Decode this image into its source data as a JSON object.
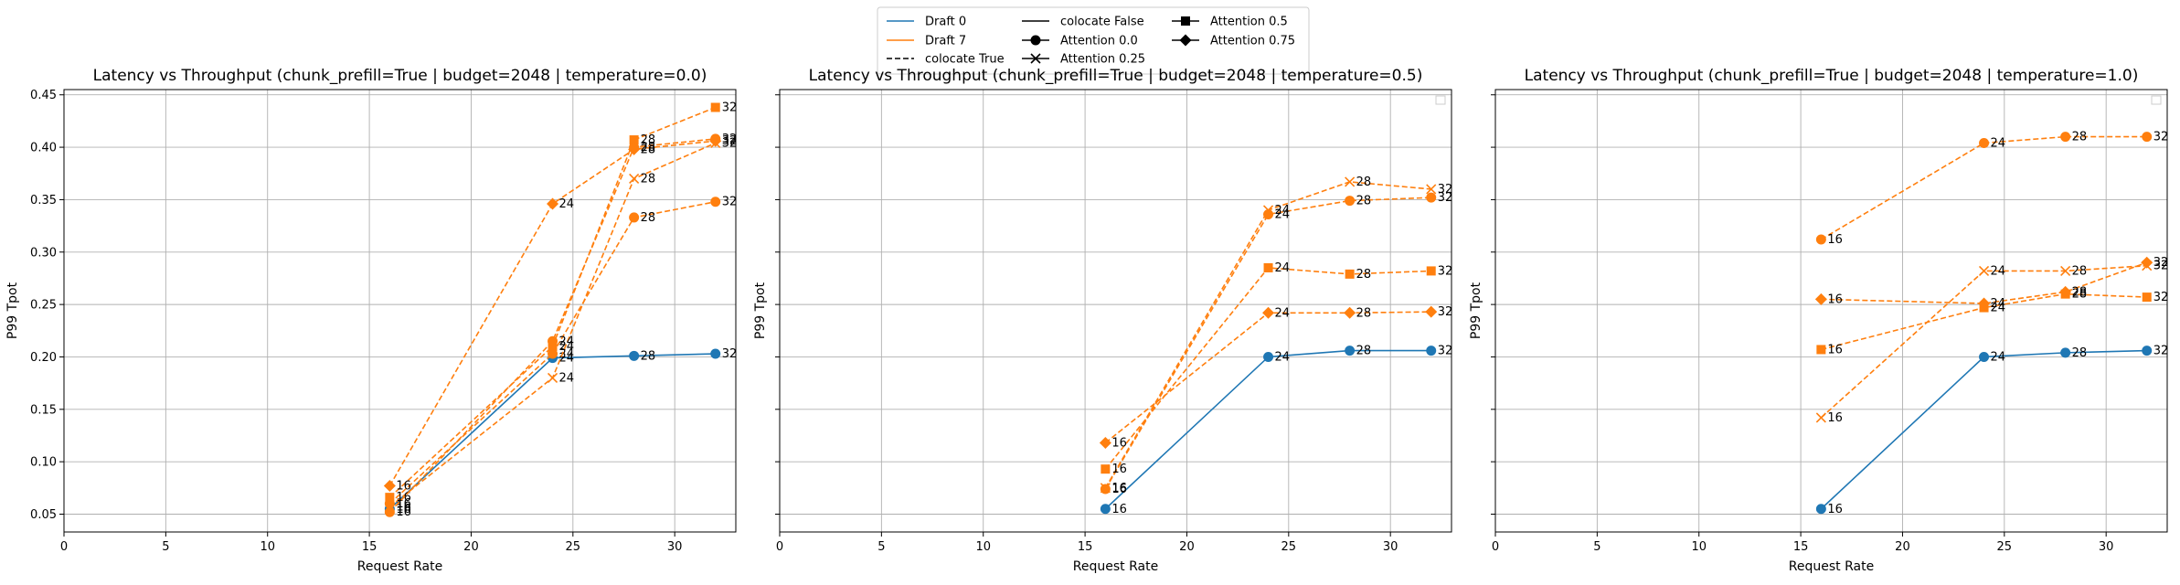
{
  "legend": {
    "placement": "top-center",
    "entries": [
      {
        "label": "Draft 0",
        "kind": "color",
        "color": "#1f77b4"
      },
      {
        "label": "Draft 7",
        "kind": "color",
        "color": "#ff7f0e"
      },
      {
        "label": "colocate True",
        "kind": "dash"
      },
      {
        "label": "colocate False",
        "kind": "solid"
      },
      {
        "label": "Attention 0.0",
        "kind": "marker",
        "marker": "circle"
      },
      {
        "label": "Attention 0.25",
        "kind": "marker",
        "marker": "x"
      },
      {
        "label": "Attention 0.5",
        "kind": "marker",
        "marker": "square"
      },
      {
        "label": "Attention 0.75",
        "kind": "marker",
        "marker": "diamond"
      }
    ]
  },
  "colors": {
    "draft0": "#1f77b4",
    "draft7": "#ff7f0e",
    "grid": "#b0b0b0"
  },
  "chart_data": [
    {
      "type": "line",
      "title": "Latency vs Throughput (chunk_prefill=True | budget=2048 | temperature=0.0)",
      "xlabel": "Request Rate",
      "ylabel": "P99 Tpot",
      "xlim": [
        0,
        33
      ],
      "ylim": [
        0.033,
        0.455
      ],
      "xticks": [
        0,
        5,
        10,
        15,
        20,
        25,
        30
      ],
      "yticks": [
        0.05,
        0.1,
        0.15,
        0.2,
        0.25,
        0.3,
        0.35,
        0.4,
        0.45
      ],
      "ytick_labels": [
        "0.05",
        "0.10",
        "0.15",
        "0.20",
        "0.25",
        "0.30",
        "0.35",
        "0.40",
        "0.45"
      ],
      "grid": true,
      "empty_legend_box": false,
      "series": [
        {
          "color": "#1f77b4",
          "dashed": false,
          "marker": "circle",
          "x": [
            16,
            24,
            28,
            32
          ],
          "y": [
            0.055,
            0.199,
            0.201,
            0.203
          ],
          "labels": [
            "16",
            "24",
            "28",
            "32"
          ]
        },
        {
          "color": "#ff7f0e",
          "dashed": true,
          "marker": "circle",
          "x": [
            16,
            24,
            28,
            32
          ],
          "y": [
            0.06,
            0.203,
            0.333,
            0.348
          ],
          "labels": [
            "16",
            "24",
            "28",
            "32"
          ]
        },
        {
          "color": "#ff7f0e",
          "dashed": true,
          "marker": "x",
          "x": [
            16,
            24,
            28,
            32
          ],
          "y": [
            0.057,
            0.18,
            0.37,
            0.404
          ],
          "labels": [
            "16",
            "24",
            "28",
            "32"
          ]
        },
        {
          "color": "#ff7f0e",
          "dashed": true,
          "marker": "square",
          "x": [
            16,
            24,
            28,
            32
          ],
          "y": [
            0.066,
            0.21,
            0.407,
            0.438
          ],
          "labels": [
            "16",
            "24",
            "28",
            "32"
          ]
        },
        {
          "color": "#ff7f0e",
          "dashed": true,
          "marker": "diamond",
          "x": [
            16,
            24,
            28,
            32
          ],
          "y": [
            0.077,
            0.346,
            0.398,
            0.406
          ],
          "labels": [
            "16",
            "24",
            "28",
            "32"
          ]
        },
        {
          "color": "#ff7f0e",
          "dashed": true,
          "marker": "circle",
          "x": [
            16,
            24,
            28,
            32
          ],
          "y": [
            0.052,
            0.215,
            0.4,
            0.408
          ],
          "labels": [
            "16",
            "24",
            "28",
            "32"
          ]
        }
      ]
    },
    {
      "type": "line",
      "title": "Latency vs Throughput (chunk_prefill=True | budget=2048 | temperature=0.5)",
      "xlabel": "Request Rate",
      "ylabel": "P99 Tpot",
      "xlim": [
        0,
        33
      ],
      "ylim": [
        0.033,
        0.455
      ],
      "xticks": [
        0,
        5,
        10,
        15,
        20,
        25,
        30
      ],
      "yticks": [
        0.05,
        0.1,
        0.15,
        0.2,
        0.25,
        0.3,
        0.35,
        0.4,
        0.45
      ],
      "ytick_labels": [],
      "grid": true,
      "empty_legend_box": true,
      "series": [
        {
          "color": "#1f77b4",
          "dashed": false,
          "marker": "circle",
          "x": [
            16,
            24,
            28,
            32
          ],
          "y": [
            0.055,
            0.2,
            0.206,
            0.206
          ],
          "labels": [
            "16",
            "24",
            "28",
            "32"
          ]
        },
        {
          "color": "#ff7f0e",
          "dashed": true,
          "marker": "circle",
          "x": [
            16,
            24,
            28,
            32
          ],
          "y": [
            0.074,
            0.336,
            0.349,
            0.352
          ],
          "labels": [
            "16",
            "24",
            "28",
            "32"
          ]
        },
        {
          "color": "#ff7f0e",
          "dashed": true,
          "marker": "x",
          "x": [
            16,
            24,
            28,
            32
          ],
          "y": [
            0.075,
            0.34,
            0.367,
            0.36
          ],
          "labels": [
            "16",
            "24",
            "28",
            "32"
          ]
        },
        {
          "color": "#ff7f0e",
          "dashed": true,
          "marker": "square",
          "x": [
            16,
            24,
            28,
            32
          ],
          "y": [
            0.093,
            0.285,
            0.279,
            0.282
          ],
          "labels": [
            "16",
            "24",
            "28",
            "32"
          ]
        },
        {
          "color": "#ff7f0e",
          "dashed": true,
          "marker": "diamond",
          "x": [
            16,
            24,
            28,
            32
          ],
          "y": [
            0.118,
            0.242,
            0.242,
            0.243
          ],
          "labels": [
            "16",
            "24",
            "28",
            "32"
          ]
        }
      ]
    },
    {
      "type": "line",
      "title": "Latency vs Throughput (chunk_prefill=True | budget=2048 | temperature=1.0)",
      "xlabel": "Request Rate",
      "ylabel": "P99 Tpot",
      "xlim": [
        0,
        33
      ],
      "ylim": [
        0.033,
        0.455
      ],
      "xticks": [
        0,
        5,
        10,
        15,
        20,
        25,
        30
      ],
      "yticks": [
        0.05,
        0.1,
        0.15,
        0.2,
        0.25,
        0.3,
        0.35,
        0.4,
        0.45
      ],
      "ytick_labels": [],
      "grid": true,
      "empty_legend_box": true,
      "series": [
        {
          "color": "#1f77b4",
          "dashed": false,
          "marker": "circle",
          "x": [
            16,
            24,
            28,
            32
          ],
          "y": [
            0.055,
            0.2,
            0.204,
            0.206
          ],
          "labels": [
            "16",
            "24",
            "28",
            "32"
          ]
        },
        {
          "color": "#ff7f0e",
          "dashed": true,
          "marker": "circle",
          "x": [
            16,
            24,
            28,
            32
          ],
          "y": [
            0.312,
            0.404,
            0.41,
            0.41
          ],
          "labels": [
            "16",
            "24",
            "28",
            "32"
          ]
        },
        {
          "color": "#ff7f0e",
          "dashed": true,
          "marker": "x",
          "x": [
            16,
            24,
            28,
            32
          ],
          "y": [
            0.142,
            0.282,
            0.282,
            0.287
          ],
          "labels": [
            "16",
            "24",
            "28",
            "32"
          ]
        },
        {
          "color": "#ff7f0e",
          "dashed": true,
          "marker": "square",
          "x": [
            16,
            24,
            28,
            32
          ],
          "y": [
            0.207,
            0.247,
            0.26,
            0.257
          ],
          "labels": [
            "16",
            "24",
            "28",
            "32"
          ]
        },
        {
          "color": "#ff7f0e",
          "dashed": true,
          "marker": "diamond",
          "x": [
            16,
            24,
            28,
            32
          ],
          "y": [
            0.255,
            0.251,
            0.262,
            0.29
          ],
          "labels": [
            "16",
            "24",
            "28",
            "32"
          ]
        }
      ]
    }
  ]
}
